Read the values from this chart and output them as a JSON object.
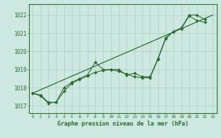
{
  "x": [
    0,
    1,
    2,
    3,
    4,
    5,
    6,
    7,
    8,
    9,
    10,
    11,
    12,
    13,
    14,
    15,
    16,
    17,
    18,
    19,
    20,
    21,
    22,
    23
  ],
  "line_main": [
    1017.7,
    1017.6,
    1017.2,
    1017.2,
    1018.0,
    1018.3,
    1018.5,
    1018.7,
    1019.4,
    1019.0,
    1019.0,
    1019.0,
    1018.7,
    1018.8,
    1018.6,
    1018.6,
    1019.6,
    1020.75,
    1021.1,
    1021.3,
    1022.0,
    1022.0,
    1021.75,
    null
  ],
  "line_alt": [
    1017.7,
    1017.55,
    1017.15,
    1017.2,
    1017.8,
    1018.25,
    1018.45,
    1018.65,
    1018.85,
    1018.95,
    1019.0,
    1018.9,
    1018.75,
    1018.6,
    1018.55,
    1018.55,
    1019.55,
    1020.7,
    1021.1,
    1021.25,
    1021.95,
    1021.7,
    1021.6,
    null
  ],
  "trend_x": [
    0,
    23
  ],
  "trend_y": [
    1017.7,
    1022.0
  ],
  "bg_color": "#cce8e0",
  "line_color": "#2d6a2d",
  "grid_color": "#a8ccbf",
  "ylabel_ticks": [
    1017,
    1018,
    1019,
    1020,
    1021,
    1022
  ],
  "xlabel": "Graphe pression niveau de la mer (hPa)",
  "ylim": [
    1016.6,
    1022.6
  ],
  "xlim": [
    -0.5,
    23.5
  ],
  "title_fontsize": 5.5,
  "xlabel_fontsize": 6.0,
  "ytick_fontsize": 5.5,
  "xtick_fontsize": 4.5
}
